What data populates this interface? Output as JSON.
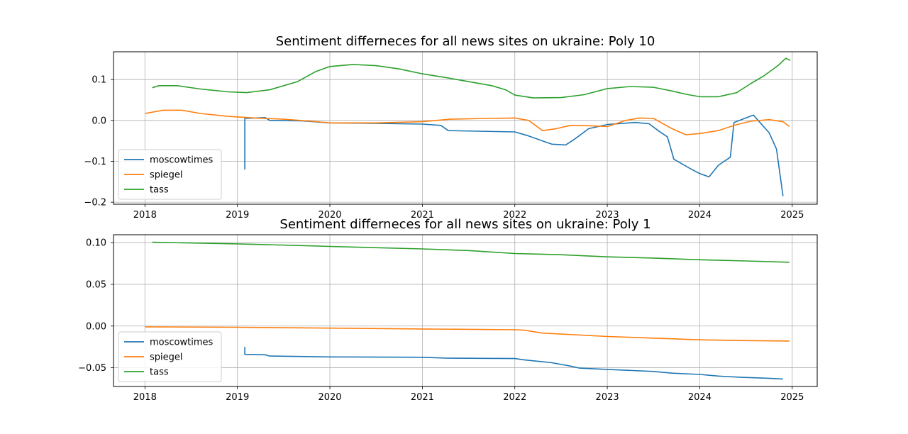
{
  "chart_data": [
    {
      "type": "line",
      "title": "Sentiment differneces for all news sites on ukraine: Poly 10",
      "xlabel": "",
      "ylabel": "",
      "xlim": [
        2017.66,
        2025.27
      ],
      "ylim": [
        -0.205,
        0.168
      ],
      "xticks": [
        2018,
        2019,
        2020,
        2021,
        2022,
        2023,
        2024,
        2025
      ],
      "yticks": [
        0.1,
        0.0,
        -0.1,
        -0.2
      ],
      "ytick_labels": [
        "0.1",
        "0.0",
        "−0.1",
        "−0.2"
      ],
      "grid": true,
      "legend_position": "lower-left",
      "series": [
        {
          "name": "moscowtimes",
          "color": "#1f77b4",
          "points": [
            [
              2019.08,
              -0.12
            ],
            [
              2019.08,
              0.005
            ],
            [
              2019.3,
              0.007
            ],
            [
              2019.35,
              0.0
            ],
            [
              2019.7,
              -0.001
            ],
            [
              2020.0,
              -0.006
            ],
            [
              2020.5,
              -0.007
            ],
            [
              2021.0,
              -0.009
            ],
            [
              2021.2,
              -0.012
            ],
            [
              2021.28,
              -0.025
            ],
            [
              2022.0,
              -0.028
            ],
            [
              2022.15,
              -0.038
            ],
            [
              2022.3,
              -0.05
            ],
            [
              2022.4,
              -0.058
            ],
            [
              2022.55,
              -0.06
            ],
            [
              2022.65,
              -0.045
            ],
            [
              2022.8,
              -0.02
            ],
            [
              2023.0,
              -0.01
            ],
            [
              2023.3,
              -0.005
            ],
            [
              2023.45,
              -0.008
            ],
            [
              2023.55,
              -0.025
            ],
            [
              2023.65,
              -0.04
            ],
            [
              2023.72,
              -0.095
            ],
            [
              2023.9,
              -0.118
            ],
            [
              2024.0,
              -0.13
            ],
            [
              2024.1,
              -0.138
            ],
            [
              2024.2,
              -0.11
            ],
            [
              2024.33,
              -0.09
            ],
            [
              2024.37,
              -0.005
            ],
            [
              2024.58,
              0.013
            ],
            [
              2024.75,
              -0.03
            ],
            [
              2024.83,
              -0.07
            ],
            [
              2024.9,
              -0.185
            ]
          ]
        },
        {
          "name": "spiegel",
          "color": "#ff7f0e",
          "points": [
            [
              2018.0,
              0.017
            ],
            [
              2018.1,
              0.021
            ],
            [
              2018.2,
              0.025
            ],
            [
              2018.4,
              0.025
            ],
            [
              2018.6,
              0.017
            ],
            [
              2018.9,
              0.01
            ],
            [
              2019.2,
              0.006
            ],
            [
              2019.5,
              0.003
            ],
            [
              2019.8,
              -0.002
            ],
            [
              2020.0,
              -0.006
            ],
            [
              2020.5,
              -0.006
            ],
            [
              2021.0,
              -0.003
            ],
            [
              2021.3,
              0.003
            ],
            [
              2021.7,
              0.005
            ],
            [
              2022.0,
              0.006
            ],
            [
              2022.15,
              0.0
            ],
            [
              2022.3,
              -0.025
            ],
            [
              2022.45,
              -0.02
            ],
            [
              2022.6,
              -0.012
            ],
            [
              2022.8,
              -0.013
            ],
            [
              2023.0,
              -0.015
            ],
            [
              2023.2,
              0.0
            ],
            [
              2023.35,
              0.006
            ],
            [
              2023.5,
              0.005
            ],
            [
              2023.7,
              -0.02
            ],
            [
              2023.85,
              -0.035
            ],
            [
              2024.0,
              -0.032
            ],
            [
              2024.2,
              -0.025
            ],
            [
              2024.4,
              -0.01
            ],
            [
              2024.55,
              -0.002
            ],
            [
              2024.75,
              0.002
            ],
            [
              2024.9,
              -0.003
            ],
            [
              2024.97,
              -0.015
            ]
          ]
        },
        {
          "name": "tass",
          "color": "#2ca02c",
          "points": [
            [
              2018.08,
              0.08
            ],
            [
              2018.15,
              0.085
            ],
            [
              2018.35,
              0.085
            ],
            [
              2018.6,
              0.077
            ],
            [
              2018.9,
              0.07
            ],
            [
              2019.1,
              0.068
            ],
            [
              2019.35,
              0.075
            ],
            [
              2019.65,
              0.095
            ],
            [
              2019.85,
              0.12
            ],
            [
              2020.0,
              0.132
            ],
            [
              2020.25,
              0.137
            ],
            [
              2020.5,
              0.134
            ],
            [
              2020.75,
              0.126
            ],
            [
              2021.0,
              0.114
            ],
            [
              2021.25,
              0.105
            ],
            [
              2021.5,
              0.095
            ],
            [
              2021.75,
              0.085
            ],
            [
              2021.9,
              0.075
            ],
            [
              2022.0,
              0.062
            ],
            [
              2022.2,
              0.055
            ],
            [
              2022.5,
              0.056
            ],
            [
              2022.75,
              0.063
            ],
            [
              2023.0,
              0.078
            ],
            [
              2023.25,
              0.083
            ],
            [
              2023.5,
              0.081
            ],
            [
              2023.7,
              0.072
            ],
            [
              2023.85,
              0.064
            ],
            [
              2024.0,
              0.058
            ],
            [
              2024.2,
              0.058
            ],
            [
              2024.4,
              0.068
            ],
            [
              2024.55,
              0.09
            ],
            [
              2024.7,
              0.11
            ],
            [
              2024.85,
              0.135
            ],
            [
              2024.93,
              0.152
            ],
            [
              2024.98,
              0.147
            ]
          ]
        }
      ]
    },
    {
      "type": "line",
      "title": "Sentiment differneces for all news sites on ukraine: Poly 1",
      "xlabel": "",
      "ylabel": "",
      "xlim": [
        2017.66,
        2025.27
      ],
      "ylim": [
        -0.0725,
        0.1095
      ],
      "xticks": [
        2018,
        2019,
        2020,
        2021,
        2022,
        2023,
        2024,
        2025
      ],
      "yticks": [
        0.1,
        0.05,
        0.0,
        -0.05
      ],
      "ytick_labels": [
        "0.10",
        "0.05",
        "0.00",
        "−0.05"
      ],
      "grid": true,
      "legend_position": "lower-left",
      "series": [
        {
          "name": "moscowtimes",
          "color": "#1f77b4",
          "points": [
            [
              2019.08,
              -0.025
            ],
            [
              2019.08,
              -0.034
            ],
            [
              2019.3,
              -0.0345
            ],
            [
              2019.35,
              -0.036
            ],
            [
              2020.0,
              -0.037
            ],
            [
              2021.0,
              -0.0375
            ],
            [
              2021.25,
              -0.0385
            ],
            [
              2022.0,
              -0.039
            ],
            [
              2022.1,
              -0.0405
            ],
            [
              2022.4,
              -0.044
            ],
            [
              2022.6,
              -0.048
            ],
            [
              2022.7,
              -0.0505
            ],
            [
              2023.0,
              -0.052
            ],
            [
              2023.5,
              -0.0545
            ],
            [
              2023.7,
              -0.0565
            ],
            [
              2024.0,
              -0.058
            ],
            [
              2024.2,
              -0.06
            ],
            [
              2024.45,
              -0.0615
            ],
            [
              2024.7,
              -0.0625
            ],
            [
              2024.9,
              -0.0635
            ]
          ]
        },
        {
          "name": "spiegel",
          "color": "#ff7f0e",
          "points": [
            [
              2018.0,
              -0.001
            ],
            [
              2019.0,
              -0.0015
            ],
            [
              2020.0,
              -0.0025
            ],
            [
              2021.0,
              -0.0035
            ],
            [
              2022.0,
              -0.0045
            ],
            [
              2022.1,
              -0.005
            ],
            [
              2022.3,
              -0.0085
            ],
            [
              2023.0,
              -0.0125
            ],
            [
              2023.5,
              -0.0145
            ],
            [
              2024.0,
              -0.0165
            ],
            [
              2024.5,
              -0.0175
            ],
            [
              2024.97,
              -0.018
            ]
          ]
        },
        {
          "name": "tass",
          "color": "#2ca02c",
          "points": [
            [
              2018.08,
              0.1005
            ],
            [
              2019.0,
              0.0985
            ],
            [
              2019.7,
              0.0965
            ],
            [
              2020.0,
              0.0955
            ],
            [
              2021.0,
              0.0925
            ],
            [
              2021.5,
              0.0905
            ],
            [
              2022.0,
              0.087
            ],
            [
              2022.5,
              0.0855
            ],
            [
              2023.0,
              0.083
            ],
            [
              2023.5,
              0.0815
            ],
            [
              2024.0,
              0.0795
            ],
            [
              2024.5,
              0.078
            ],
            [
              2024.97,
              0.0765
            ]
          ]
        }
      ]
    }
  ]
}
